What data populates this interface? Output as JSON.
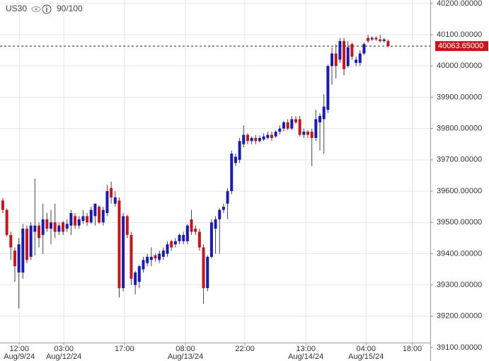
{
  "chart_data": {
    "type": "candlestick",
    "title": "US30",
    "subtitle": "90/100",
    "up_color": "#1c1caa",
    "down_color": "#c4161c",
    "grid": true,
    "xlim": [
      -0.7,
      106.5
    ],
    "xticks": [
      {
        "value": 4.1,
        "label": "12:00",
        "date": "Aug/9/24"
      },
      {
        "value": 15.2,
        "label": "03:00",
        "date": "Aug/12/24"
      },
      {
        "value": 30.3,
        "label": "17:00"
      },
      {
        "value": 45.5,
        "label": "08:00",
        "date": "Aug/13/24"
      },
      {
        "value": 60.3,
        "label": "22:00"
      },
      {
        "value": 75.5,
        "label": "13:00",
        "date": "Aug/14/24"
      },
      {
        "value": 90.5,
        "label": "04:00",
        "date": "Aug/15/24"
      },
      {
        "value": 102,
        "label": "18:00"
      }
    ],
    "ylim": [
      39100,
      40211
    ],
    "yticks": [
      {
        "value": 39100,
        "label": "39100.00000"
      },
      {
        "value": 39200,
        "label": "39200.00000"
      },
      {
        "value": 39300,
        "label": "39300.00000"
      },
      {
        "value": 39400,
        "label": "39400.00000"
      },
      {
        "value": 39500,
        "label": "39500.00000"
      },
      {
        "value": 39600,
        "label": "39600.00000"
      },
      {
        "value": 39700,
        "label": "39700.00000"
      },
      {
        "value": 39800,
        "label": "39800.00000"
      },
      {
        "value": 39900,
        "label": "39900.00000"
      },
      {
        "value": 40000,
        "label": "40000.00000"
      },
      {
        "value": 40100,
        "label": "40100.00000"
      },
      {
        "value": 40200,
        "label": "40200.00000"
      }
    ],
    "last_price": {
      "value": 40063.65,
      "label": "40063.65000"
    },
    "candles": [
      [
        39570,
        39578,
        39530,
        39540
      ],
      [
        39540,
        39545,
        39455,
        39460
      ],
      [
        39460,
        39470,
        39380,
        39420
      ],
      [
        39410,
        39420,
        39310,
        39360
      ],
      [
        39340,
        39450,
        39225,
        39430
      ],
      [
        39340,
        39495,
        39320,
        39480
      ],
      [
        39480,
        39490,
        39370,
        39380
      ],
      [
        39390,
        39500,
        39380,
        39490
      ],
      [
        39470,
        39640,
        39395,
        39490
      ],
      [
        39490,
        39500,
        39420,
        39450
      ],
      [
        39460,
        39560,
        39400,
        39510
      ],
      [
        39510,
        39530,
        39470,
        39480
      ],
      [
        39480,
        39540,
        39430,
        39500
      ],
      [
        39500,
        39560,
        39450,
        39470
      ],
      [
        39470,
        39500,
        39460,
        39490
      ],
      [
        39500,
        39505,
        39460,
        39470
      ],
      [
        39480,
        39510,
        39470,
        39495
      ],
      [
        39490,
        39540,
        39460,
        39530
      ],
      [
        39520,
        39530,
        39480,
        39490
      ],
      [
        39490,
        39520,
        39480,
        39510
      ],
      [
        39505,
        39540,
        39495,
        39520
      ],
      [
        39520,
        39530,
        39490,
        39500
      ],
      [
        39500,
        39550,
        39495,
        39540
      ],
      [
        39520,
        39560,
        39490,
        39560
      ],
      [
        39550,
        39555,
        39495,
        39500
      ],
      [
        39500,
        39550,
        39490,
        39540
      ],
      [
        39530,
        39620,
        39520,
        39600
      ],
      [
        39610,
        39630,
        39560,
        39580
      ],
      [
        39560,
        39600,
        39550,
        39580
      ],
      [
        39570,
        39580,
        39260,
        39290
      ],
      [
        39290,
        39530,
        39280,
        39520
      ],
      [
        39520,
        39525,
        39450,
        39460
      ],
      [
        39460,
        39470,
        39300,
        39320
      ],
      [
        39300,
        39345,
        39270,
        39340
      ],
      [
        39310,
        39365,
        39290,
        39360
      ],
      [
        39350,
        39390,
        39340,
        39380
      ],
      [
        39370,
        39400,
        39360,
        39390
      ],
      [
        39380,
        39420,
        39360,
        39390
      ],
      [
        39395,
        39400,
        39375,
        39385
      ],
      [
        39380,
        39410,
        39370,
        39400
      ],
      [
        39390,
        39420,
        39380,
        39410
      ],
      [
        39400,
        39440,
        39390,
        39430
      ],
      [
        39440,
        39445,
        39410,
        39420
      ],
      [
        39430,
        39450,
        39420,
        39440
      ],
      [
        39440,
        39465,
        39430,
        39460
      ],
      [
        39440,
        39470,
        39430,
        39460
      ],
      [
        39440,
        39495,
        39430,
        39490
      ],
      [
        39510,
        39540,
        39460,
        39470
      ],
      [
        39480,
        39490,
        39460,
        39470
      ],
      [
        39470,
        39480,
        39410,
        39420
      ],
      [
        39420,
        39430,
        39240,
        39290
      ],
      [
        39290,
        39395,
        39280,
        39390
      ],
      [
        39390,
        39510,
        39385,
        39500
      ],
      [
        39480,
        39520,
        39400,
        39510
      ],
      [
        39510,
        39545,
        39400,
        39540
      ],
      [
        39540,
        39560,
        39530,
        39550
      ],
      [
        39560,
        39610,
        39510,
        39600
      ],
      [
        39600,
        39730,
        39590,
        39720
      ],
      [
        39690,
        39720,
        39680,
        39710
      ],
      [
        39700,
        39770,
        39690,
        39760
      ],
      [
        39750,
        39810,
        39740,
        39780
      ],
      [
        39780,
        39785,
        39750,
        39760
      ],
      [
        39760,
        39775,
        39750,
        39770
      ],
      [
        39770,
        39780,
        39750,
        39760
      ],
      [
        39760,
        39778,
        39755,
        39770
      ],
      [
        39765,
        39785,
        39760,
        39775
      ],
      [
        39770,
        39790,
        39765,
        39780
      ],
      [
        39780,
        39790,
        39760,
        39770
      ],
      [
        39775,
        39795,
        39770,
        39790
      ],
      [
        39790,
        39810,
        39780,
        39800
      ],
      [
        39800,
        39825,
        39790,
        39820
      ],
      [
        39820,
        39830,
        39795,
        39800
      ],
      [
        39800,
        39840,
        39795,
        39830
      ],
      [
        39830,
        39840,
        39815,
        39820
      ],
      [
        39830,
        39840,
        39775,
        39780
      ],
      [
        39780,
        39800,
        39770,
        39790
      ],
      [
        39790,
        39795,
        39770,
        39780
      ],
      [
        39790,
        39800,
        39680,
        39770
      ],
      [
        39770,
        39860,
        39760,
        39830
      ],
      [
        39820,
        39850,
        39730,
        39840
      ],
      [
        39830,
        39910,
        39720,
        39870
      ],
      [
        39860,
        40005,
        39850,
        40000
      ],
      [
        40000,
        40060,
        39940,
        40040
      ],
      [
        40040,
        40070,
        39960,
        40000
      ],
      [
        40020,
        40090,
        40010,
        40080
      ],
      [
        40080,
        40090,
        39970,
        39990
      ],
      [
        40000,
        40080,
        39995,
        40060
      ],
      [
        40070,
        40075,
        40020,
        40030
      ],
      [
        40010,
        40030,
        40000,
        40020
      ],
      [
        40010,
        40050,
        40000,
        40040
      ],
      [
        40040,
        40075,
        40035,
        40070
      ],
      [
        40090,
        40100,
        40075,
        40080
      ],
      [
        40085,
        40095,
        40080,
        40090
      ],
      [
        40090,
        40095,
        40080,
        40085
      ],
      [
        40085,
        40100,
        40075,
        40080
      ],
      [
        40080,
        40090,
        40075,
        40085
      ],
      [
        40080,
        40085,
        40060,
        40063.65
      ]
    ]
  }
}
